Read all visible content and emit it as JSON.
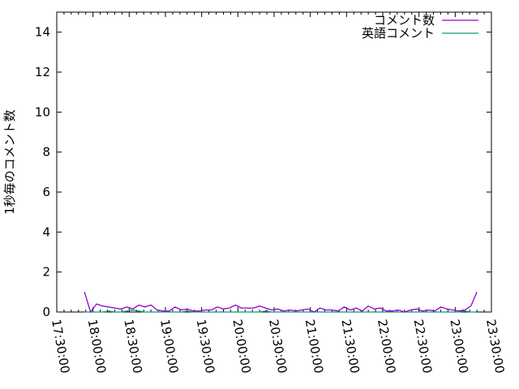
{
  "chart_data": {
    "type": "line",
    "title": "",
    "xlabel": "",
    "ylabel": "1秒毎のコメント数",
    "xlim": [
      "17:30:00",
      "23:30:00"
    ],
    "ylim": [
      0,
      15
    ],
    "x_ticks": [
      "17:30:00",
      "18:00:00",
      "18:30:00",
      "19:00:00",
      "19:30:00",
      "20:00:00",
      "20:30:00",
      "21:00:00",
      "21:30:00",
      "22:00:00",
      "22:30:00",
      "23:00:00",
      "23:30:00"
    ],
    "y_ticks": [
      0,
      2,
      4,
      6,
      8,
      10,
      12,
      14
    ],
    "grid": false,
    "legend_position": "top-right",
    "x_start": "17:53:00",
    "x_step_minutes": 5,
    "series": [
      {
        "name": "コメント数",
        "color": "#9400d3",
        "values": [
          1.0,
          0.0,
          0.4,
          0.3,
          0.25,
          0.2,
          0.15,
          0.25,
          0.15,
          0.35,
          0.25,
          0.35,
          0.1,
          0.05,
          0.05,
          0.25,
          0.1,
          0.15,
          0.05,
          0.05,
          0.1,
          0.1,
          0.25,
          0.15,
          0.2,
          0.35,
          0.2,
          0.2,
          0.2,
          0.3,
          0.2,
          0.1,
          0.15,
          0.05,
          0.1,
          0.05,
          0.1,
          0.15,
          0.0,
          0.2,
          0.1,
          0.1,
          0.05,
          0.25,
          0.1,
          0.2,
          0.05,
          0.3,
          0.15,
          0.2,
          0.05,
          0.05,
          0.1,
          0.0,
          0.1,
          0.15,
          0.05,
          0.1,
          0.05,
          0.25,
          0.15,
          0.1,
          0.05,
          0.1,
          0.3,
          1.0
        ]
      },
      {
        "name": "英語コメント",
        "color": "#009e73",
        "values": [
          0,
          0,
          0,
          0,
          0.05,
          0,
          0,
          0.05,
          0.1,
          0.05,
          0,
          0,
          0,
          0,
          0,
          0,
          0,
          0.05,
          0,
          0,
          0,
          0,
          0,
          0,
          0,
          0,
          0,
          0,
          0,
          0,
          0.05,
          0,
          0,
          0,
          0,
          0,
          0,
          0,
          0,
          0,
          0,
          0,
          0,
          0,
          0,
          0,
          0,
          0,
          0,
          0,
          0,
          0,
          0,
          0,
          0,
          0,
          0,
          0,
          0,
          0,
          0,
          0,
          0,
          0.05,
          0,
          0
        ]
      }
    ]
  }
}
